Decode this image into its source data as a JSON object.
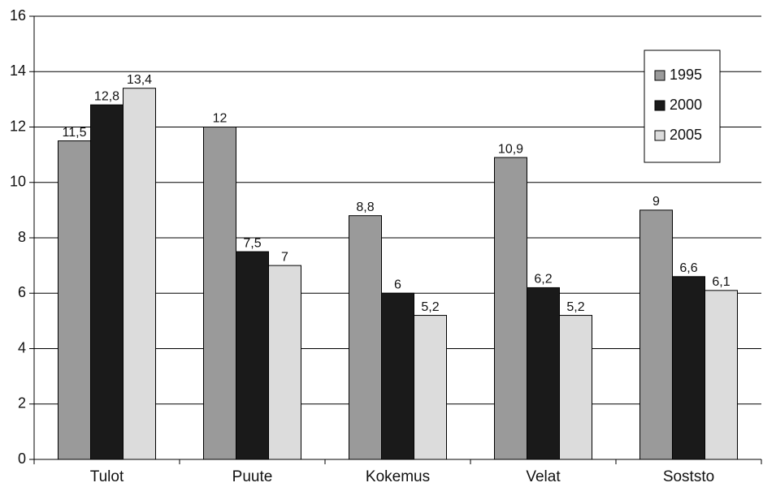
{
  "chart_data": {
    "type": "bar",
    "categories": [
      "Tulot",
      "Puute",
      "Kokemus",
      "Velat",
      "Soststo"
    ],
    "series": [
      {
        "name": "1995",
        "color": "#9a9a9a",
        "values": [
          11.5,
          12,
          8.8,
          10.9,
          9
        ],
        "value_labels": [
          "11,5",
          "12",
          "8,8",
          "10,9",
          "9"
        ]
      },
      {
        "name": "2000",
        "color": "#1a1a1a",
        "values": [
          12.8,
          7.5,
          6,
          6.2,
          6.6
        ],
        "value_labels": [
          "12,8",
          "7,5",
          "6",
          "6,2",
          "6,6"
        ]
      },
      {
        "name": "2005",
        "color": "#dcdcdc",
        "values": [
          13.4,
          7,
          5.2,
          5.2,
          6.1
        ],
        "value_labels": [
          "13,4",
          "7",
          "5,2",
          "5,2",
          "6,1"
        ]
      }
    ],
    "ylim": [
      0,
      16
    ],
    "yticks": [
      0,
      2,
      4,
      6,
      8,
      10,
      12,
      14,
      16
    ],
    "grid": true,
    "legend": "upper right"
  }
}
